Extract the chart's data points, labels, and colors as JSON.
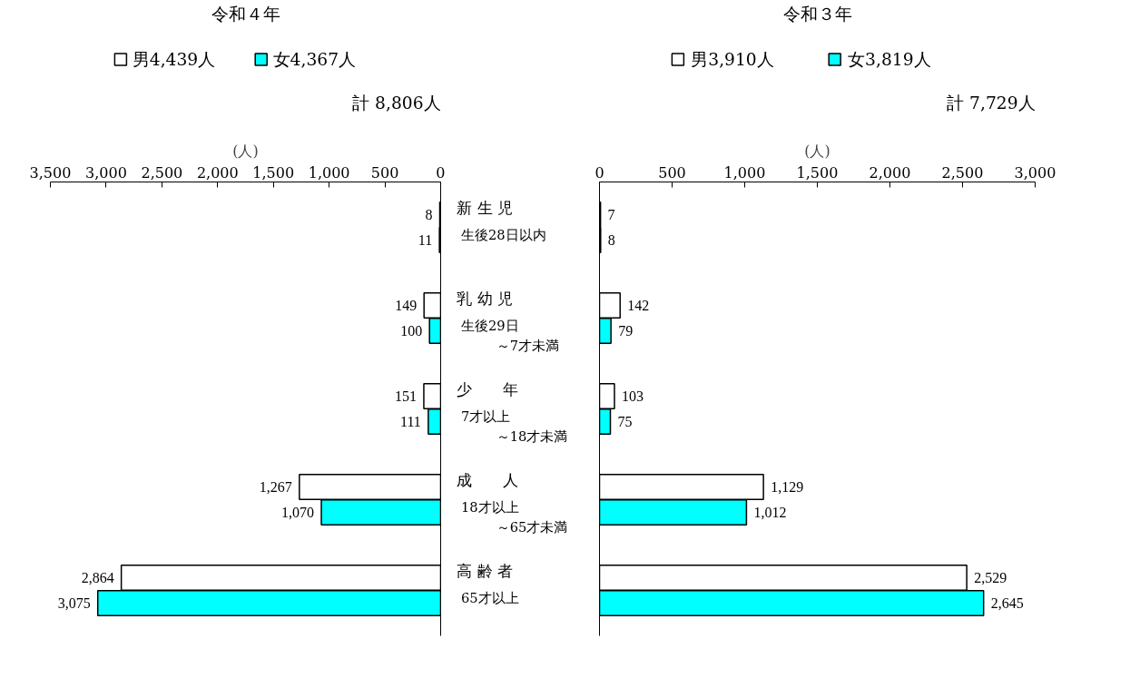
{
  "chart_data": [
    {
      "type": "bar",
      "orientation": "horizontal",
      "title": "令和４年",
      "xlabel": "(人)",
      "legend": "top",
      "tick_labels": "x",
      "annotations": [
        "計 8,806人"
      ],
      "categories": [
        null,
        null,
        null,
        null,
        null
      ],
      "series": [
        {
          "name": "男4,439人",
          "color": "#ffffff",
          "values": [
            8,
            149,
            151,
            1267,
            2864
          ],
          "value_labels": [
            "8",
            "149",
            "151",
            "1,267",
            "2,864"
          ]
        },
        {
          "name": "女4,367人",
          "color": "#00ffff",
          "values": [
            11,
            100,
            111,
            1070,
            3075
          ],
          "value_labels": [
            "11",
            "100",
            "111",
            "1,070",
            "3,075"
          ]
        }
      ],
      "xlim": [
        3500,
        0
      ],
      "xticks": [
        {
          "value": 3500,
          "label": "3,500"
        },
        {
          "value": 3000,
          "label": "3,000"
        },
        {
          "value": 2500,
          "label": "2,500"
        },
        {
          "value": 2000,
          "label": "2,000"
        },
        {
          "value": 1500,
          "label": "1,500"
        },
        {
          "value": 1000,
          "label": "1,000"
        },
        500,
        0
      ]
    },
    {
      "type": "bar",
      "orientation": "horizontal",
      "title": "令和３年",
      "xlabel": "(人)",
      "legend": "top",
      "annotations": [
        "計 7,729人",
        "生後28日以内",
        "生後29日",
        "～7才未満",
        "7才以上",
        "～18才未満",
        "18才以上",
        "～65才未満",
        "65才以上"
      ],
      "categories": [
        "新 生 児",
        "乳 幼 児",
        "少　　年",
        "成　　人",
        "高 齢 者"
      ],
      "series": [
        {
          "name": "男3,910人",
          "color": "#ffffff",
          "values": [
            7,
            142,
            103,
            1129,
            2529
          ],
          "value_labels": [
            "7",
            "142",
            "103",
            "1,129",
            "2,529"
          ]
        },
        {
          "name": "女3,819人",
          "color": "#00ffff",
          "values": [
            8,
            79,
            75,
            1012,
            2645
          ],
          "value_labels": [
            "8",
            "79",
            "75",
            "1,012",
            "2,645"
          ]
        }
      ],
      "xlim": [
        0,
        3000
      ],
      "xticks": [
        0,
        500,
        {
          "value": 1000,
          "label": "1,000"
        },
        {
          "value": 1500,
          "label": "1,500"
        },
        {
          "value": 2000,
          "label": "2,000"
        },
        {
          "value": 2500,
          "label": "2,500"
        },
        {
          "value": 3000,
          "label": "3,000"
        }
      ]
    }
  ]
}
